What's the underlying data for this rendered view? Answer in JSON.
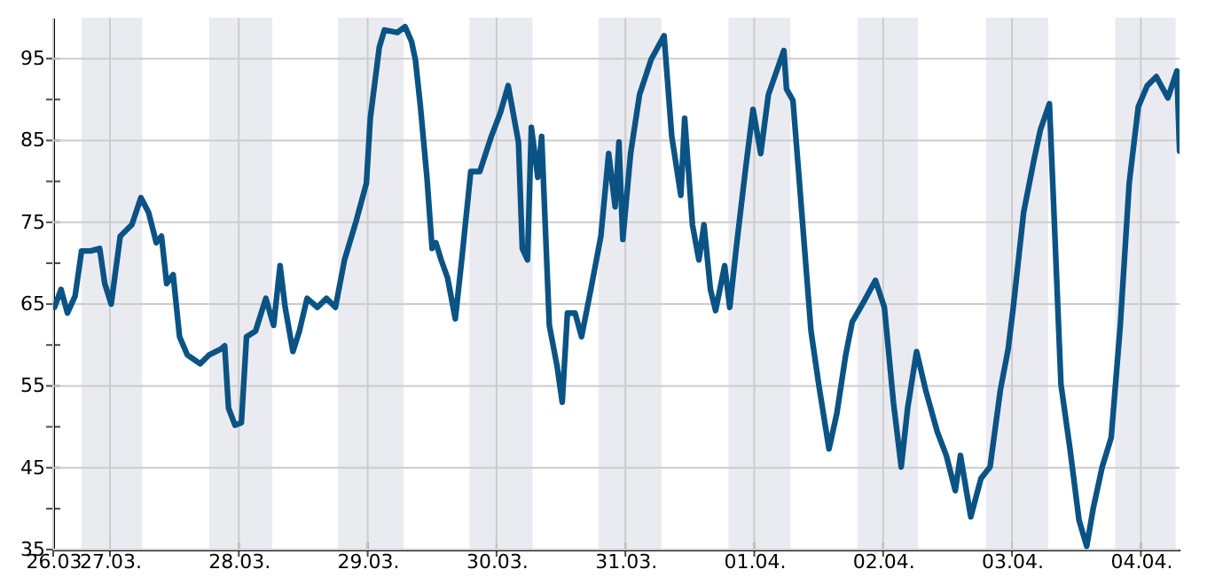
{
  "chart_data": {
    "type": "line",
    "x": [
      "--03-26T13:41",
      "--03-26T14:53",
      "--03-26T16:05",
      "--03-26T17:31",
      "--03-26T18:43",
      "--03-26T20:24",
      "--03-26T22:05",
      "--03-26T23:02",
      "--03-27T00:14",
      "--03-27T01:55",
      "--03-27T04:05",
      "--03-27T05:46",
      "--03-27T07:12",
      "--03-27T08:38",
      "--03-27T09:36",
      "--03-27T10:34",
      "--03-27T11:46",
      "--03-27T12:58",
      "--03-27T14:24",
      "--03-27T16:48",
      "--03-27T18:29",
      "--03-27T20:38",
      "--03-27T21:22",
      "--03-27T22:05",
      "--03-27T23:17",
      "--03-28T00:29",
      "--03-28T01:26",
      "--03-28T03:07",
      "--03-28T05:02",
      "--03-28T06:29",
      "--03-28T07:41",
      "--03-28T08:38",
      "--03-28T10:05",
      "--03-28T11:17",
      "--03-28T12:43",
      "--03-28T14:38",
      "--03-28T16:19",
      "--03-28T18:00",
      "--03-28T19:41",
      "--03-28T21:50",
      "--03-28T23:46",
      "--03-29T00:29",
      "--03-29T02:10",
      "--03-29T03:07",
      "--03-29T05:31",
      "--03-29T06:58",
      "--03-29T08:10",
      "--03-29T08:53",
      "--03-29T09:50",
      "--03-29T11:02",
      "--03-29T12:00",
      "--03-29T12:43",
      "--03-29T13:41",
      "--03-29T14:53",
      "--03-29T16:19",
      "--03-29T17:31",
      "--03-29T19:12",
      "--03-29T20:53",
      "--03-29T23:02",
      "--03-30T00:43",
      "--03-30T02:10",
      "--03-30T04:05",
      "--03-30T04:48",
      "--03-30T05:46",
      "--03-30T06:29",
      "--03-30T07:41",
      "--03-30T08:24",
      "--03-30T09:50",
      "--03-30T11:17",
      "--03-30T12:14",
      "--03-30T13:12",
      "--03-30T14:38",
      "--03-30T15:50",
      "--03-30T17:46",
      "--03-30T19:26",
      "--03-30T20:53",
      "--03-30T22:05",
      "--03-30T22:48",
      "--03-30T23:31",
      "--03-31T00:58",
      "--03-31T02:38",
      "--03-31T04:48",
      "--03-31T07:12",
      "--03-31T08:38",
      "--03-31T10:19",
      "--03-31T11:02",
      "--03-31T12:29",
      "--03-31T13:41",
      "--03-31T14:38",
      "--03-31T15:50",
      "--03-31T16:48",
      "--03-31T18:29",
      "--03-31T19:26",
      "--03-31T20:38",
      "--03-31T22:19",
      "--03-31T23:46",
      "--04-01T01:12",
      "--04-01T02:38",
      "--04-01T05:31",
      "--04-01T06:00",
      "--04-01T07:12",
      "--04-01T08:10",
      "--04-01T09:22",
      "--04-01T10:34",
      "--04-01T12:00",
      "--04-01T13:55",
      "--04-01T15:22",
      "--04-01T17:02",
      "--04-01T18:14",
      "--04-01T20:24",
      "--04-01T22:34",
      "--04-02T00:14",
      "--04-02T01:55",
      "--04-02T03:22",
      "--04-02T04:34",
      "--04-02T06:14",
      "--04-02T07:55",
      "--04-02T10:05",
      "--04-02T11:46",
      "--04-02T13:26",
      "--04-02T14:24",
      "--04-02T16:19",
      "--04-02T18:14",
      "--04-02T19:55",
      "--04-02T21:50",
      "--04-02T23:17",
      "--04-03T00:14",
      "--04-03T02:10",
      "--04-03T04:05",
      "--04-03T05:17",
      "--04-03T06:58",
      "--04-03T07:41",
      "--04-03T09:07",
      "--04-03T10:48",
      "--04-03T12:29",
      "--04-03T13:55",
      "--04-03T15:07",
      "--04-03T16:48",
      "--04-03T18:29",
      "--04-03T20:10",
      "--04-03T21:50",
      "--04-03T23:31",
      "--04-04T01:12",
      "--04-04T02:53",
      "--04-04T05:02",
      "--04-04T06:43",
      "--04-04T07:12"
    ],
    "series": [
      {
        "color": "#0b5384",
        "values": [
          64.6,
          66.8,
          63.9,
          66.0,
          71.5,
          71.5,
          71.8,
          67.5,
          65.0,
          73.3,
          74.7,
          78.0,
          76.2,
          72.5,
          73.3,
          67.5,
          68.6,
          61.0,
          58.8,
          57.7,
          58.8,
          59.5,
          59.9,
          52.3,
          50.2,
          50.5,
          61.0,
          61.7,
          65.7,
          62.4,
          69.7,
          64.6,
          59.2,
          61.7,
          65.7,
          64.6,
          65.7,
          64.6,
          70.4,
          75.1,
          79.8,
          87.7,
          96.4,
          98.5,
          98.2,
          98.9,
          97.1,
          94.9,
          89.1,
          80.5,
          71.8,
          72.5,
          70.4,
          68.2,
          63.2,
          70.4,
          81.2,
          81.2,
          85.5,
          88.4,
          91.7,
          84.8,
          71.8,
          70.4,
          86.6,
          80.5,
          85.5,
          62.4,
          57.4,
          53.0,
          63.9,
          63.9,
          61.0,
          67.5,
          73.3,
          83.4,
          76.9,
          84.8,
          72.9,
          83.4,
          90.6,
          94.9,
          97.8,
          85.5,
          78.3,
          87.7,
          74.7,
          70.4,
          74.7,
          66.8,
          64.2,
          69.7,
          64.6,
          71.8,
          81.2,
          88.8,
          83.4,
          90.6,
          96.0,
          91.3,
          89.9,
          81.9,
          71.8,
          61.7,
          55.2,
          47.3,
          51.6,
          58.8,
          62.8,
          65.3,
          67.9,
          64.6,
          53.0,
          45.1,
          52.3,
          59.2,
          54.5,
          49.4,
          46.5,
          42.2,
          46.5,
          39.0,
          43.7,
          45.1,
          54.5,
          59.5,
          64.6,
          76.2,
          82.6,
          86.3,
          89.5,
          78.3,
          55.2,
          47.3,
          38.6,
          35.4,
          40.0,
          45.1,
          48.7,
          62.4,
          79.8,
          89.1,
          91.7,
          92.8,
          90.2,
          93.5,
          83.7
        ]
      }
    ],
    "xlim": [
      "--03-26T13:26",
      "--04-04T07:12"
    ],
    "xticks": [
      {
        "value": "--03-26T13:26",
        "label": "26.03"
      },
      {
        "value": "--03-27T00:00",
        "label": "27.03."
      },
      {
        "value": "--03-28T00:00",
        "label": "28.03."
      },
      {
        "value": "--03-29T00:00",
        "label": "29.03."
      },
      {
        "value": "--03-30T00:00",
        "label": "30.03."
      },
      {
        "value": "--03-31T00:00",
        "label": "31.03."
      },
      {
        "value": "--04-01T00:00",
        "label": "01.04."
      },
      {
        "value": "--04-02T00:00",
        "label": "02.04."
      },
      {
        "value": "--04-03T00:00",
        "label": "03.04."
      },
      {
        "value": "--04-04T00:00",
        "label": "04.04."
      }
    ],
    "ylim": [
      35,
      100
    ],
    "yticks": [
      35,
      {
        "value": 40,
        "label": null
      },
      45,
      {
        "value": 50,
        "label": null
      },
      55,
      {
        "value": 60,
        "label": null
      },
      65,
      {
        "value": 70,
        "label": null
      },
      75,
      {
        "value": 80,
        "label": null
      },
      85,
      {
        "value": 90,
        "label": null
      },
      95
    ],
    "grid": true,
    "line_style": "solid",
    "bands": [
      {
        "axis": "x",
        "from": "--03-26T18:43",
        "to": "--03-27T06:00",
        "color": "#eaebf1"
      },
      {
        "axis": "x",
        "from": "--03-27T18:29",
        "to": "--03-28T06:14",
        "color": "#eaebf1"
      },
      {
        "axis": "x",
        "from": "--03-28T18:29",
        "to": "--03-29T06:43",
        "color": "#eaebf1"
      },
      {
        "axis": "x",
        "from": "--03-29T18:58",
        "to": "--03-30T06:43",
        "color": "#eaebf1"
      },
      {
        "axis": "x",
        "from": "--03-30T18:58",
        "to": "--03-31T06:43",
        "color": "#eaebf1"
      },
      {
        "axis": "x",
        "from": "--03-31T19:12",
        "to": "--04-01T06:43",
        "color": "#eaebf1"
      },
      {
        "axis": "x",
        "from": "--04-01T19:12",
        "to": "--04-02T06:29",
        "color": "#eaebf1"
      },
      {
        "axis": "x",
        "from": "--04-02T19:12",
        "to": "--04-03T06:43",
        "color": "#eaebf1"
      },
      {
        "axis": "x",
        "from": "--04-03T19:12",
        "to": "--04-04T06:29",
        "color": "#eaebf1"
      }
    ]
  }
}
